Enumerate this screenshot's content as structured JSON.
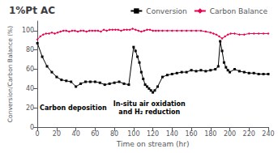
{
  "chart_data": {
    "type": "line",
    "title": "1%Pt AC",
    "xlabel": "Time on stream (hr)",
    "ylabel": "Conversion/Carbon Balance (%)",
    "xlim": [
      0,
      240
    ],
    "ylim": [
      0,
      110
    ],
    "xticks": [
      0,
      20,
      40,
      60,
      80,
      100,
      120,
      140,
      160,
      180,
      200,
      220,
      240
    ],
    "yticks": [
      0,
      20,
      40,
      60,
      80,
      100
    ],
    "grid": false,
    "legend": "upper right",
    "annotations": [
      "Carbon deposition",
      "In-situ air oxidation\nand H₂ reduction"
    ],
    "series": [
      {
        "name": "Conversion",
        "color": "#000000",
        "marker": "square",
        "x": [
          0,
          5,
          10,
          15,
          20,
          25,
          30,
          35,
          40,
          45,
          50,
          55,
          60,
          65,
          70,
          75,
          80,
          85,
          90,
          95,
          100,
          102,
          104,
          106,
          108,
          110,
          112,
          114,
          116,
          118,
          120,
          122,
          125,
          130,
          135,
          140,
          145,
          150,
          155,
          160,
          165,
          170,
          175,
          180,
          185,
          188,
          190,
          192,
          194,
          196,
          198,
          200,
          205,
          210,
          215,
          220,
          225,
          230,
          235,
          240
        ],
        "values": [
          87,
          73,
          63,
          57,
          52,
          49,
          48,
          47,
          42,
          45,
          47,
          47,
          47,
          46,
          44,
          45,
          46,
          47,
          45,
          44,
          83,
          79,
          73,
          67,
          57,
          50,
          44,
          42,
          40,
          38,
          36,
          38,
          42,
          52,
          54,
          55,
          56,
          57,
          57,
          59,
          58,
          59,
          58,
          59,
          60,
          63,
          89,
          79,
          67,
          62,
          59,
          57,
          60,
          58,
          57,
          56,
          56,
          55,
          55,
          55
        ]
      },
      {
        "name": "Carbon Balance",
        "color": "#e8004e",
        "marker": "diamond",
        "x": [
          0,
          3,
          6,
          9,
          12,
          15,
          18,
          21,
          24,
          27,
          30,
          33,
          36,
          39,
          42,
          45,
          48,
          51,
          54,
          57,
          60,
          63,
          66,
          69,
          72,
          75,
          78,
          81,
          84,
          87,
          90,
          93,
          96,
          99,
          102,
          105,
          108,
          111,
          114,
          117,
          120,
          123,
          126,
          130,
          135,
          140,
          145,
          150,
          155,
          160,
          165,
          170,
          175,
          180,
          183,
          186,
          189,
          192,
          195,
          198,
          201,
          205,
          210,
          215,
          220,
          225,
          230,
          235,
          240
        ],
        "values": [
          91,
          94,
          96,
          97,
          97,
          98,
          97,
          98,
          99,
          100,
          100,
          99,
          100,
          100,
          99,
          100,
          100,
          99,
          100,
          100,
          100,
          100,
          99,
          101,
          100,
          101,
          101,
          101,
          101,
          100,
          101,
          101,
          101,
          102,
          101,
          100,
          99,
          100,
          101,
          101,
          100,
          100,
          100,
          100,
          100,
          100,
          100,
          100,
          100,
          100,
          100,
          100,
          99,
          98,
          97,
          96,
          94,
          92,
          94,
          96,
          97,
          97,
          96,
          96,
          97,
          97,
          97,
          97,
          97
        ]
      }
    ]
  }
}
